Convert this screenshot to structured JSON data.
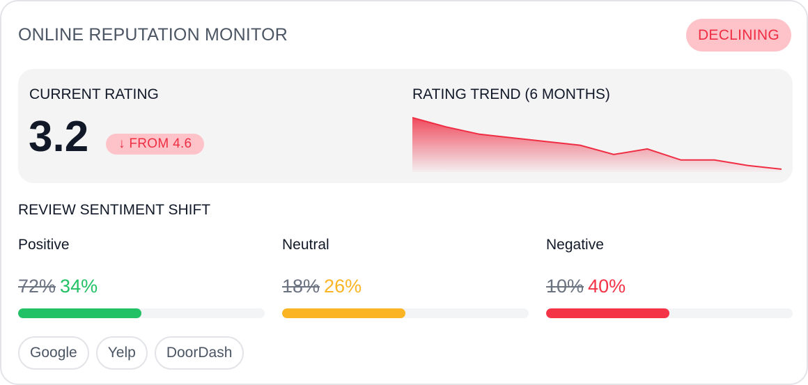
{
  "header": {
    "title": "ONLINE REPUTATION MONITOR",
    "status": "DECLINING"
  },
  "rating": {
    "label": "CURRENT RATING",
    "value": "3.2",
    "change": "↓ FROM 4.6"
  },
  "trend": {
    "label": "RATING TREND (6 MONTHS)",
    "color": "#ef2d43",
    "values": [
      4.6,
      4.35,
      4.15,
      4.05,
      3.95,
      3.85,
      3.6,
      3.75,
      3.45,
      3.45,
      3.3,
      3.2
    ]
  },
  "sentiment": {
    "title": "REVIEW SENTIMENT SHIFT",
    "items": [
      {
        "label": "Positive",
        "old": "72%",
        "new": "34%",
        "level": 0.5,
        "color": "#22c165"
      },
      {
        "label": "Neutral",
        "old": "18%",
        "new": "26%",
        "level": 0.5,
        "color": "#fbb524"
      },
      {
        "label": "Negative",
        "old": "10%",
        "new": "40%",
        "level": 0.5,
        "color": "#f43347"
      }
    ]
  },
  "platforms": [
    "Google",
    "Yelp",
    "DoorDash"
  ]
}
